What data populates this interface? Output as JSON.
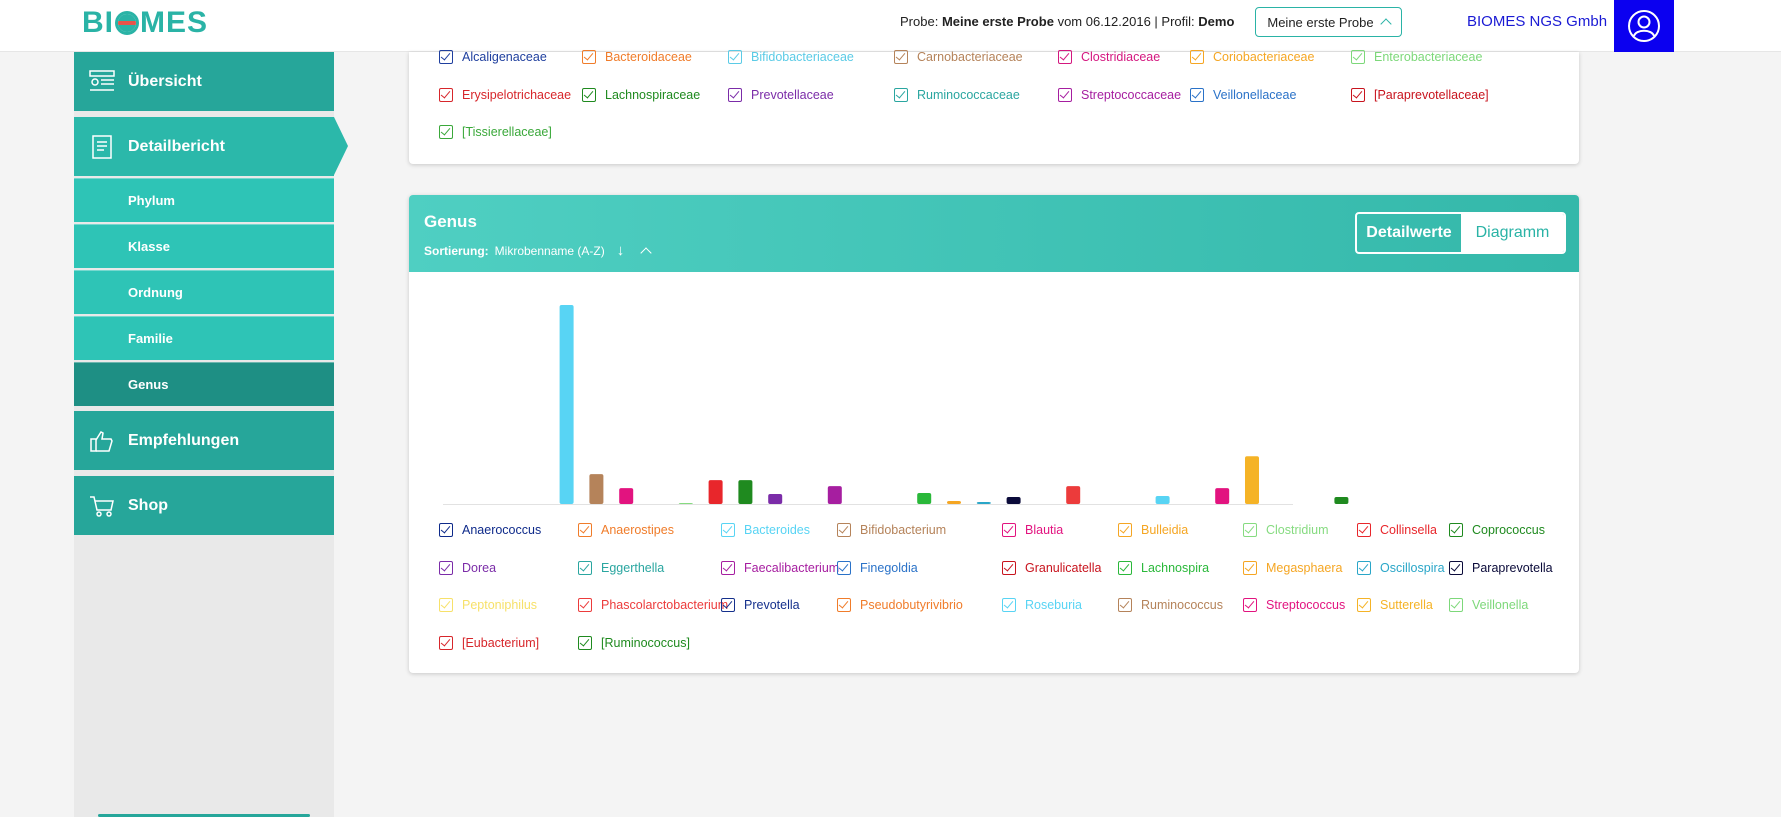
{
  "header": {
    "logo": "BIOMES",
    "probe_prefix": "Probe:",
    "probe_name": "Meine erste Probe",
    "probe_mid": "vom 06.12.2016 | Profil:",
    "profile": "Demo",
    "probe_select_label": "Meine erste Probe",
    "company": "BIOMES NGS Gmbh",
    "avatar_icon": "user-circle-icon"
  },
  "sidebar": {
    "main": [
      {
        "label": "Übersicht",
        "icon": "overview-icon"
      },
      {
        "label": "Detailbericht",
        "icon": "report-icon"
      },
      {
        "label": "Empfehlungen",
        "icon": "thumbs-up-icon"
      },
      {
        "label": "Shop",
        "icon": "cart-icon"
      }
    ],
    "sub": [
      "Phylum",
      "Klasse",
      "Ordnung",
      "Familie",
      "Genus"
    ],
    "selected_sub": "Genus"
  },
  "family_legend": [
    {
      "label": "Alcaligenaceae",
      "color": "#1f3f9e"
    },
    {
      "label": "Bacteroidaceae",
      "color": "#f07c2a"
    },
    {
      "label": "Bifidobacteriaceae",
      "color": "#5bcbe6"
    },
    {
      "label": "Carnobacteriaceae",
      "color": "#b5835a"
    },
    {
      "label": "Clostridiaceae",
      "color": "#d4177f"
    },
    {
      "label": "Coriobacteriaceae",
      "color": "#f5a623"
    },
    {
      "label": "Enterobacteriaceae",
      "color": "#7dd87a"
    },
    {
      "label": "Erysipelotrichaceae",
      "color": "#d7262b"
    },
    {
      "label": "Lachnospiraceae",
      "color": "#1f8a1f"
    },
    {
      "label": "Prevotellaceae",
      "color": "#7b2ca8"
    },
    {
      "label": "Ruminococcaceae",
      "color": "#2aa6a0"
    },
    {
      "label": "Streptococcaceae",
      "color": "#a61ea0"
    },
    {
      "label": "Veillonellaceae",
      "color": "#2a72c8"
    },
    {
      "label": "[Paraprevotellaceae]",
      "color": "#c8141e"
    },
    {
      "label": "[Tissierellaceae]",
      "color": "#3aa83a"
    }
  ],
  "genus": {
    "title": "Genus",
    "sort_label": "Sortierung:",
    "sort_value": "Mikrobenname (A-Z)",
    "sort_arrow": "↓",
    "toggle_details": "Detailwerte",
    "toggle_chart": "Diagramm"
  },
  "chart_data": {
    "type": "bar",
    "categories": [
      "Anaerococcus",
      "Anaerostipes",
      "Bacteroides",
      "Bifidobacterium",
      "Blautia",
      "Bulleidia",
      "Clostridium",
      "Collinsella",
      "Coprococcus",
      "Dorea",
      "Eggerthella",
      "Faecalibacterium",
      "Finegoldia",
      "Granulicatella",
      "Lachnospira",
      "Megasphaera",
      "Oscillospira",
      "Paraprevotella",
      "Peptoniphilus",
      "Phascolarctobacterium",
      "Prevotella",
      "Pseudobutyrivibrio",
      "Roseburia",
      "Ruminococcus",
      "Streptococcus",
      "Sutterella",
      "Veillonella",
      "[Eubacterium]",
      "[Ruminococcus]"
    ],
    "values": [
      0,
      0,
      100,
      15,
      8,
      0,
      0.5,
      12,
      12,
      5,
      0,
      9,
      0,
      0,
      5.5,
      1.5,
      1,
      3.5,
      0,
      9,
      0,
      0,
      4,
      0,
      8,
      24,
      0,
      0,
      3.5
    ],
    "colors": [
      "#0e2a8a",
      "#f07c2a",
      "#58d4f4",
      "#b5835a",
      "#e2137f",
      "#f5a623",
      "#86db80",
      "#e8262b",
      "#1f8a1f",
      "#7b2ca8",
      "#2aa6a0",
      "#a61ea0",
      "#2a72c8",
      "#c8141e",
      "#2ab83a",
      "#f5a623",
      "#2aa6c8",
      "#0b0b3a",
      "#f7e16a",
      "#ec3b3b",
      "#15308c",
      "#f07c2a",
      "#58d4f4",
      "#b5835a",
      "#e2137f",
      "#f5b326",
      "#7dd87a",
      "#d7262b",
      "#1f8a1f"
    ],
    "ylim": [
      0,
      100
    ],
    "grid": false,
    "legend_placement": "bottom"
  }
}
